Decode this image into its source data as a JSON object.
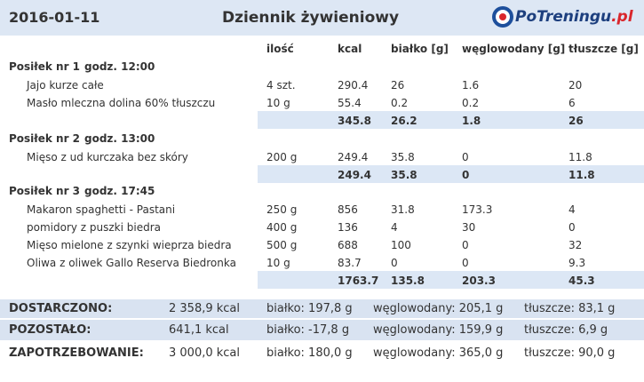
{
  "header": {
    "date": "2016-01-11",
    "title": "Dziennik żywieniowy",
    "logo": {
      "main": "PoTreningu",
      "suffix": ".pl"
    }
  },
  "columns": [
    "ilość",
    "kcal",
    "białko [g]",
    "węglowodany [g]",
    "tłuszcze [g]"
  ],
  "meals": [
    {
      "name": "Posiłek nr 1",
      "time": "godz. 12:00",
      "items": [
        [
          "Jajo kurze całe",
          "4 szt.",
          "290.4",
          "26",
          "1.6",
          "20"
        ],
        [
          "Masło mleczna dolina 60% tłuszczu",
          "10 g",
          "55.4",
          "0.2",
          "0.2",
          "6"
        ]
      ],
      "total": [
        "345.8",
        "26.2",
        "1.8",
        "26"
      ]
    },
    {
      "name": "Posiłek nr 2",
      "time": "godz. 13:00",
      "items": [
        [
          "Mięso z ud kurczaka bez skóry",
          "200 g",
          "249.4",
          "35.8",
          "0",
          "11.8"
        ]
      ],
      "total": [
        "249.4",
        "35.8",
        "0",
        "11.8"
      ]
    },
    {
      "name": "Posiłek nr 3",
      "time": "godz. 17:45",
      "items": [
        [
          "Makaron spaghetti - Pastani",
          "250 g",
          "856",
          "31.8",
          "173.3",
          "4"
        ],
        [
          "pomidory z puszki biedra",
          "400 g",
          "136",
          "4",
          "30",
          "0"
        ],
        [
          "Mięso mielone z szynki wieprza biedra",
          "500 g",
          "688",
          "100",
          "0",
          "32"
        ],
        [
          "Oliwa z oliwek Gallo Reserva Biedronka",
          "10 g",
          "83.7",
          "0",
          "0",
          "9.3"
        ]
      ],
      "total": [
        "1763.7",
        "135.8",
        "203.3",
        "45.3"
      ]
    }
  ],
  "summary": [
    [
      "DOSTARCZONO:",
      "2 358,9 kcal",
      "białko: 197,8 g",
      "węglowodany: 205,1 g",
      "tłuszcze: 83,1 g"
    ],
    [
      "POZOSTAŁO:",
      "641,1 kcal",
      "białko: -17,8 g",
      "węglowodany: 159,9 g",
      "tłuszcze: 6,9 g"
    ],
    [
      "ZAPOTRZEBOWANIE:",
      "3 000,0 kcal",
      "białko: 180,0 g",
      "węglowodany: 365,0 g",
      "tłuszcze: 90,0 g"
    ]
  ]
}
